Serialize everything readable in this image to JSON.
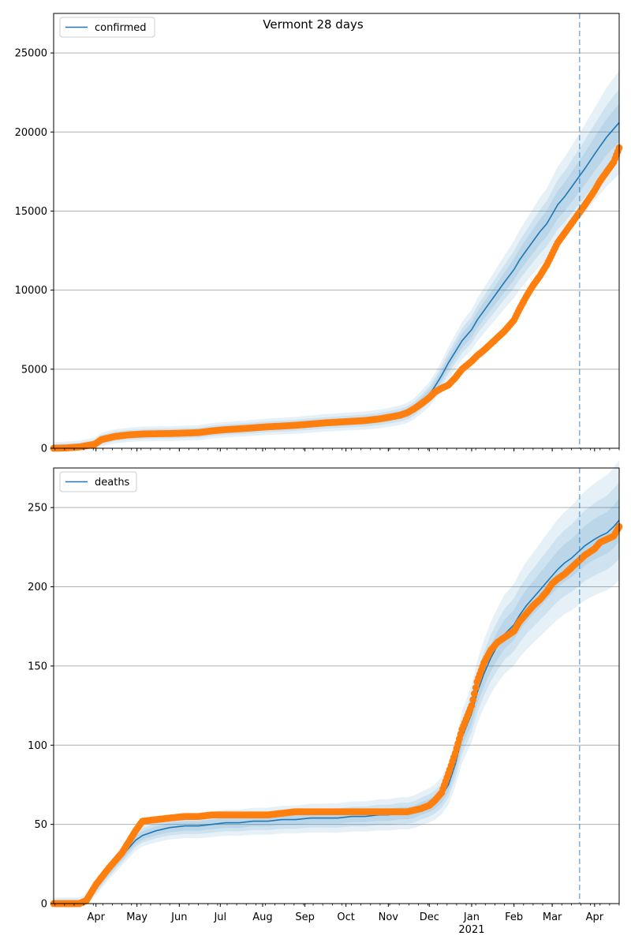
{
  "title": "Vermont 28 days",
  "x_tick_labels": [
    "Apr",
    "May",
    "Jun",
    "Jul",
    "Aug",
    "Sep",
    "Oct",
    "Nov",
    "Dec",
    "Jan",
    "Feb",
    "Mar",
    "Apr"
  ],
  "x_year_label": "2021",
  "colors": {
    "model": "#1f77b4",
    "observed": "#ff7f0e",
    "band": "#1f77b4",
    "grid": "#b0b0b0",
    "forecast_line": "#1f77b4"
  },
  "chart_data": [
    {
      "type": "line",
      "legend": "confirmed",
      "legend_location": "upper-left",
      "x_range": [
        "2020-03-01",
        "2021-04-19"
      ],
      "ylim": [
        0,
        27500
      ],
      "yticks": [
        0,
        5000,
        10000,
        15000,
        20000,
        25000
      ],
      "grid": "horizontal",
      "forecast_start": "2021-03-21",
      "observed": {
        "x": [
          "2020-03-01",
          "2020-03-10",
          "2020-03-20",
          "2020-03-31",
          "2020-04-05",
          "2020-04-15",
          "2020-04-25",
          "2020-05-05",
          "2020-05-15",
          "2020-05-25",
          "2020-06-05",
          "2020-06-15",
          "2020-06-25",
          "2020-07-05",
          "2020-07-15",
          "2020-07-25",
          "2020-08-05",
          "2020-08-15",
          "2020-08-25",
          "2020-09-05",
          "2020-09-15",
          "2020-09-25",
          "2020-10-05",
          "2020-10-15",
          "2020-10-25",
          "2020-11-01",
          "2020-11-10",
          "2020-11-15",
          "2020-11-20",
          "2020-11-25",
          "2020-12-01",
          "2020-12-05",
          "2020-12-10",
          "2020-12-15",
          "2020-12-20",
          "2020-12-25",
          "2021-01-01",
          "2021-01-05",
          "2021-01-10",
          "2021-01-15",
          "2021-01-20",
          "2021-01-25",
          "2021-02-01",
          "2021-02-05",
          "2021-02-10",
          "2021-02-15",
          "2021-02-20",
          "2021-02-25",
          "2021-03-01",
          "2021-03-05",
          "2021-03-10",
          "2021-03-15",
          "2021-03-20",
          "2021-03-25",
          "2021-04-01",
          "2021-04-05",
          "2021-04-10",
          "2021-04-15",
          "2021-04-19"
        ],
        "y": [
          0,
          20,
          80,
          250,
          550,
          750,
          850,
          900,
          920,
          930,
          960,
          990,
          1100,
          1180,
          1230,
          1290,
          1360,
          1400,
          1450,
          1530,
          1600,
          1650,
          1700,
          1750,
          1850,
          1950,
          2100,
          2250,
          2500,
          2800,
          3200,
          3550,
          3800,
          4000,
          4450,
          5000,
          5500,
          5850,
          6200,
          6600,
          7000,
          7400,
          8100,
          8800,
          9600,
          10300,
          10900,
          11600,
          12300,
          13000,
          13600,
          14200,
          14800,
          15400,
          16300,
          16900,
          17500,
          18100,
          19000
        ]
      },
      "model": {
        "x": [
          "2020-03-01",
          "2020-03-10",
          "2020-03-20",
          "2020-03-31",
          "2020-04-05",
          "2020-04-15",
          "2020-04-25",
          "2020-05-05",
          "2020-05-15",
          "2020-05-25",
          "2020-06-05",
          "2020-06-15",
          "2020-06-25",
          "2020-07-05",
          "2020-07-15",
          "2020-07-25",
          "2020-08-05",
          "2020-08-15",
          "2020-08-25",
          "2020-09-05",
          "2020-09-15",
          "2020-09-25",
          "2020-10-05",
          "2020-10-15",
          "2020-10-25",
          "2020-11-01",
          "2020-11-10",
          "2020-11-15",
          "2020-11-20",
          "2020-11-25",
          "2020-12-01",
          "2020-12-05",
          "2020-12-10",
          "2020-12-15",
          "2020-12-20",
          "2020-12-25",
          "2021-01-01",
          "2021-01-05",
          "2021-01-10",
          "2021-01-15",
          "2021-01-20",
          "2021-01-25",
          "2021-02-01",
          "2021-02-05",
          "2021-02-10",
          "2021-02-15",
          "2021-02-20",
          "2021-02-25",
          "2021-03-01",
          "2021-03-05",
          "2021-03-10",
          "2021-03-15",
          "2021-03-20",
          "2021-03-25",
          "2021-04-01",
          "2021-04-05",
          "2021-04-10",
          "2021-04-15",
          "2021-04-19"
        ],
        "y": [
          0,
          20,
          80,
          250,
          550,
          750,
          850,
          900,
          920,
          930,
          960,
          990,
          1100,
          1180,
          1230,
          1290,
          1360,
          1400,
          1450,
          1530,
          1600,
          1650,
          1700,
          1750,
          1850,
          1950,
          2100,
          2250,
          2500,
          2900,
          3400,
          3900,
          4600,
          5400,
          6100,
          6800,
          7500,
          8100,
          8700,
          9300,
          9900,
          10500,
          11300,
          11900,
          12500,
          13100,
          13700,
          14200,
          14800,
          15400,
          15900,
          16500,
          17100,
          17700,
          18600,
          19100,
          19700,
          20200,
          20600
        ]
      }
    },
    {
      "type": "line",
      "legend": "deaths",
      "legend_location": "upper-left",
      "x_range": [
        "2020-03-01",
        "2021-04-19"
      ],
      "ylim": [
        0,
        275
      ],
      "yticks": [
        0,
        50,
        100,
        150,
        200,
        250
      ],
      "grid": "horizontal",
      "forecast_start": "2021-03-21",
      "observed": {
        "x": [
          "2020-03-01",
          "2020-03-10",
          "2020-03-20",
          "2020-03-25",
          "2020-04-01",
          "2020-04-10",
          "2020-04-20",
          "2020-04-30",
          "2020-05-05",
          "2020-05-15",
          "2020-05-25",
          "2020-06-05",
          "2020-06-15",
          "2020-06-25",
          "2020-07-05",
          "2020-07-15",
          "2020-07-25",
          "2020-08-05",
          "2020-08-15",
          "2020-08-25",
          "2020-09-05",
          "2020-09-15",
          "2020-09-25",
          "2020-10-05",
          "2020-10-15",
          "2020-10-25",
          "2020-11-01",
          "2020-11-10",
          "2020-11-15",
          "2020-11-20",
          "2020-11-25",
          "2020-12-01",
          "2020-12-05",
          "2020-12-10",
          "2020-12-15",
          "2020-12-20",
          "2020-12-25",
          "2021-01-01",
          "2021-01-05",
          "2021-01-10",
          "2021-01-15",
          "2021-01-20",
          "2021-01-25",
          "2021-02-01",
          "2021-02-05",
          "2021-02-10",
          "2021-02-15",
          "2021-02-20",
          "2021-02-25",
          "2021-03-01",
          "2021-03-05",
          "2021-03-10",
          "2021-03-15",
          "2021-03-20",
          "2021-03-25",
          "2021-04-01",
          "2021-04-05",
          "2021-04-10",
          "2021-04-15",
          "2021-04-19"
        ],
        "y": [
          0,
          0,
          0,
          2,
          12,
          22,
          32,
          46,
          52,
          53,
          54,
          55,
          55,
          56,
          56,
          56,
          56,
          56,
          57,
          58,
          58,
          58,
          58,
          58,
          58,
          58,
          58,
          58,
          58,
          59,
          60,
          62,
          65,
          70,
          82,
          95,
          110,
          125,
          140,
          152,
          160,
          165,
          168,
          172,
          178,
          183,
          188,
          192,
          197,
          202,
          205,
          208,
          212,
          216,
          220,
          224,
          228,
          230,
          232,
          238
        ]
      },
      "model": {
        "x": [
          "2020-03-01",
          "2020-03-10",
          "2020-03-20",
          "2020-03-25",
          "2020-04-01",
          "2020-04-10",
          "2020-04-20",
          "2020-04-30",
          "2020-05-05",
          "2020-05-15",
          "2020-05-25",
          "2020-06-05",
          "2020-06-15",
          "2020-06-25",
          "2020-07-05",
          "2020-07-15",
          "2020-07-25",
          "2020-08-05",
          "2020-08-15",
          "2020-08-25",
          "2020-09-05",
          "2020-09-15",
          "2020-09-25",
          "2020-10-05",
          "2020-10-15",
          "2020-10-25",
          "2020-11-01",
          "2020-11-10",
          "2020-11-15",
          "2020-11-20",
          "2020-11-25",
          "2020-12-01",
          "2020-12-05",
          "2020-12-10",
          "2020-12-15",
          "2020-12-20",
          "2020-12-25",
          "2021-01-01",
          "2021-01-05",
          "2021-01-10",
          "2021-01-15",
          "2021-01-20",
          "2021-01-25",
          "2021-02-01",
          "2021-02-05",
          "2021-02-10",
          "2021-02-15",
          "2021-02-20",
          "2021-02-25",
          "2021-03-01",
          "2021-03-05",
          "2021-03-10",
          "2021-03-15",
          "2021-03-20",
          "2021-03-25",
          "2021-04-01",
          "2021-04-05",
          "2021-04-10",
          "2021-04-15",
          "2021-04-19"
        ],
        "y": [
          0,
          0,
          0,
          2,
          10,
          20,
          30,
          40,
          43,
          46,
          48,
          49,
          49,
          50,
          51,
          51,
          52,
          52,
          53,
          53,
          54,
          54,
          54,
          55,
          55,
          56,
          56,
          57,
          57,
          58,
          60,
          62,
          64,
          68,
          75,
          88,
          105,
          120,
          133,
          145,
          155,
          163,
          170,
          176,
          182,
          188,
          193,
          198,
          203,
          207,
          211,
          215,
          218,
          222,
          226,
          230,
          232,
          234,
          238,
          242
        ]
      }
    }
  ]
}
